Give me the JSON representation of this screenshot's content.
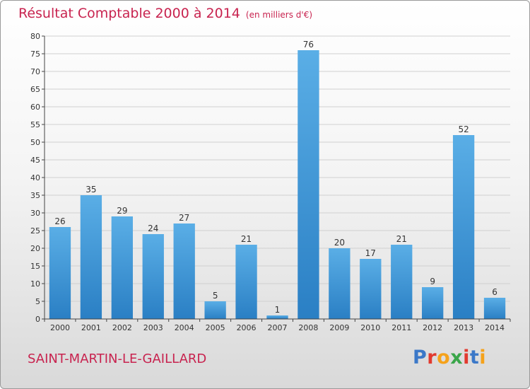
{
  "header": {
    "title": "Résultat Comptable 2000 à 2014",
    "subtitle": "(en milliers d'€)"
  },
  "footer": {
    "commune": "SAINT-MARTIN-LE-GAILLARD",
    "logo_letters": [
      "P",
      "r",
      "o",
      "x",
      "i",
      "t",
      "i"
    ],
    "logo_colors": [
      "#3b78c8",
      "#e23a2f",
      "#f5a21b",
      "#3aa64a",
      "#e23a2f",
      "#3b78c8",
      "#f5a21b"
    ]
  },
  "colors": {
    "title": "#c8234f",
    "bar_top": "#5aaee6",
    "bar_bottom": "#2a7fc4",
    "grid": "#d0d0d0",
    "axis": "#444444"
  },
  "chart_data": {
    "type": "bar",
    "categories": [
      "2000",
      "2001",
      "2002",
      "2003",
      "2004",
      "2005",
      "2006",
      "2007",
      "2008",
      "2009",
      "2010",
      "2011",
      "2012",
      "2013",
      "2014"
    ],
    "values": [
      26,
      35,
      29,
      24,
      27,
      5,
      21,
      1,
      76,
      20,
      17,
      21,
      9,
      52,
      6
    ],
    "title": "Résultat Comptable 2000 à 2014",
    "subtitle": "(en milliers d'€)",
    "ylim": [
      0,
      80
    ],
    "yticks": [
      0,
      5,
      10,
      15,
      20,
      25,
      30,
      35,
      40,
      45,
      50,
      55,
      60,
      65,
      70,
      75,
      80
    ],
    "grid": true,
    "data_labels": true
  }
}
